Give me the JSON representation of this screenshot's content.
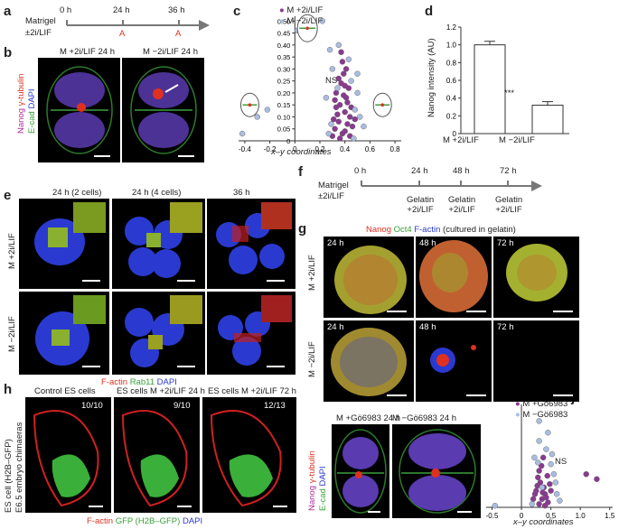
{
  "colors": {
    "red": "#e03020",
    "green": "#3aa03a",
    "blue": "#2a3ad0",
    "magenta": "#b0309a",
    "purple_dot": "#8a3a90",
    "light_dot": "#a9bde0",
    "arrow": "#888888"
  },
  "panel_letters": [
    "a",
    "b",
    "c",
    "d",
    "e",
    "f",
    "g",
    "h",
    "i",
    "j"
  ],
  "panel_a": {
    "matrigel": "Matrigel",
    "condition": "±2i/LIF",
    "ticks": [
      "0 h",
      "24 h",
      "36 h"
    ],
    "marks": [
      "A",
      "A"
    ]
  },
  "panel_b": {
    "titles": [
      "M +2i/LIF 24 h",
      "M −2i/LIF 24 h"
    ],
    "stain_labels": [
      "Nanog",
      "γ-tubulin",
      "E-cad",
      "DAPI"
    ]
  },
  "panel_e": {
    "col_titles": [
      "24 h (2 cells)",
      "24 h (4 cells)",
      "36 h"
    ],
    "row_labels": [
      "M +2i/LIF",
      "M −2i/LIF"
    ],
    "legend": [
      "F-actin",
      "Rab11",
      "DAPI"
    ]
  },
  "panel_f": {
    "matrigel": "Matrigel",
    "condition": "±2i/LIF",
    "ticks": [
      "0 h",
      "24 h",
      "48 h",
      "72 h"
    ],
    "steps": [
      [
        "Gelatin",
        "+2i/LIF"
      ],
      [
        "Gelatin",
        "+2i/LIF"
      ],
      [
        "Gelatin",
        "+2i/LIF"
      ]
    ]
  },
  "panel_g": {
    "header": [
      "Nanog",
      "Oct4",
      "F-actin",
      "(cultured in gelatin)"
    ],
    "row_labels": [
      "M +2i/LIF",
      "M −2i/LIF"
    ],
    "times": [
      "24 h",
      "48 h",
      "72 h"
    ]
  },
  "panel_h": {
    "titles": [
      "Control ES cells",
      "ES cells M +2i/LIF 24 h",
      "ES cells M +2i/LIF 72 h"
    ],
    "counts": [
      "10/10",
      "9/10",
      "12/13"
    ],
    "side_label": [
      "ES cell (H2B–GFP)",
      "E6.5 embryo chimaeras"
    ],
    "legend": [
      "F-actin",
      "GFP (H2B–GFP)",
      "DAPI"
    ]
  },
  "panel_i": {
    "titles": [
      "M +Gö6983 24 h",
      "M −Gö6983 24 h"
    ],
    "stain_labels": [
      "Nanog",
      "γ-tubulin",
      "E-cad",
      "DAPI"
    ]
  },
  "chart_data": [
    {
      "type": "scatter",
      "panel": "c",
      "xlabel": "x–y coordinates",
      "ticks_x": [
        "-0.4",
        "-0.2",
        "0",
        "0.2",
        "0.4",
        "0.6",
        "0.8"
      ],
      "ticks_y": [
        "0",
        "0.05",
        "0.10",
        "0.15",
        "0.20",
        "0.25",
        "0.30",
        "0.35",
        "0.40",
        "0.45",
        "0.50"
      ],
      "xlim": [
        -0.45,
        0.85
      ],
      "ylim": [
        0,
        0.52
      ],
      "annotation": "NS",
      "series": [
        {
          "name": "M +2i/LIF",
          "color": "#8a3a90",
          "points": [
            [
              0.3,
              0.02
            ],
            [
              0.32,
              0.05
            ],
            [
              0.35,
              0.08
            ],
            [
              0.38,
              0.03
            ],
            [
              0.4,
              0.12
            ],
            [
              0.42,
              0.07
            ],
            [
              0.36,
              0.15
            ],
            [
              0.44,
              0.1
            ],
            [
              0.33,
              0.2
            ],
            [
              0.41,
              0.18
            ],
            [
              0.37,
              0.24
            ],
            [
              0.45,
              0.14
            ],
            [
              0.39,
              0.28
            ],
            [
              0.34,
              0.11
            ],
            [
              0.43,
              0.22
            ],
            [
              0.38,
              0.33
            ],
            [
              0.4,
              0.04
            ],
            [
              0.31,
              0.09
            ],
            [
              0.46,
              0.06
            ],
            [
              0.36,
              0.01
            ],
            [
              0.42,
              0.16
            ],
            [
              0.35,
              0.26
            ],
            [
              0.39,
              0.19
            ],
            [
              0.44,
              0.02
            ],
            [
              0.37,
              0.37
            ],
            [
              0.41,
              0.3
            ],
            [
              0.33,
              0.14
            ],
            [
              0.48,
              0.09
            ],
            [
              0.32,
              0.17
            ],
            [
              0.4,
              0.23
            ]
          ]
        },
        {
          "name": "M −2i/LIF",
          "color": "#a9bde0",
          "points": [
            [
              -0.42,
              0.03
            ],
            [
              -0.3,
              0.1
            ],
            [
              -0.22,
              0.13
            ],
            [
              0.22,
              0.5
            ],
            [
              0.02,
              0.46
            ],
            [
              0.28,
              0.38
            ],
            [
              0.5,
              0.2
            ],
            [
              0.55,
              0.06
            ],
            [
              0.48,
              0.13
            ],
            [
              0.27,
              0.03
            ],
            [
              0.45,
              0.25
            ],
            [
              0.3,
              0.3
            ],
            [
              0.52,
              0.1
            ],
            [
              0.35,
              0.4
            ],
            [
              0.25,
              0.18
            ],
            [
              0.47,
              0.01
            ],
            [
              0.43,
              0.34
            ],
            [
              0.29,
              0.07
            ],
            [
              0.5,
              0.28
            ],
            [
              0.34,
              0.22
            ]
          ]
        }
      ]
    },
    {
      "type": "bar",
      "panel": "d",
      "categories": [
        "M +2i/LIF",
        "M −2i/LIF"
      ],
      "values": [
        1.0,
        0.32
      ],
      "errors": [
        0.04,
        0.04
      ],
      "ylabel": "Nanog intensity (AU)",
      "ticks_y": [
        "0",
        "0.2",
        "0.4",
        "0.6",
        "0.8",
        "1.0",
        "1.2"
      ],
      "ylim": [
        0,
        1.2
      ],
      "annotation": "***"
    },
    {
      "type": "scatter",
      "panel": "j",
      "xlabel": "x–y coordinates",
      "ticks_x": [
        "-0.5",
        "0",
        "0.5",
        "1.0",
        "1.5"
      ],
      "xlim": [
        -0.6,
        1.55
      ],
      "ylim": [
        0,
        0.62
      ],
      "annotation": "NS",
      "series": [
        {
          "name": "M +Gö6983",
          "color": "#8a3a90",
          "points": [
            [
              0.3,
              0.02
            ],
            [
              0.35,
              0.05
            ],
            [
              0.4,
              0.08
            ],
            [
              0.25,
              0.1
            ],
            [
              0.45,
              0.03
            ],
            [
              0.38,
              0.12
            ],
            [
              0.32,
              0.15
            ],
            [
              0.42,
              0.06
            ],
            [
              0.28,
              0.18
            ],
            [
              0.36,
              0.09
            ],
            [
              0.48,
              0.14
            ],
            [
              0.3,
              0.22
            ],
            [
              0.44,
              0.19
            ],
            [
              0.2,
              0.05
            ],
            [
              0.5,
              0.1
            ],
            [
              0.34,
              0.25
            ],
            [
              0.4,
              0.01
            ],
            [
              0.27,
              0.13
            ],
            [
              1.1,
              0.2
            ],
            [
              1.28,
              0.17
            ],
            [
              0.37,
              0.3
            ],
            [
              0.23,
              0.08
            ]
          ]
        },
        {
          "name": "M −Gö6983",
          "color": "#a9bde0",
          "points": [
            [
              -0.45,
              0.01
            ],
            [
              0.3,
              0.52
            ],
            [
              0.45,
              0.45
            ],
            [
              0.5,
              0.26
            ],
            [
              0.6,
              0.08
            ],
            [
              0.55,
              0.2
            ],
            [
              0.22,
              0.3
            ],
            [
              0.65,
              0.04
            ],
            [
              0.42,
              0.35
            ],
            [
              0.3,
              0.4
            ],
            [
              0.58,
              0.15
            ],
            [
              0.35,
              0.12
            ],
            [
              0.18,
              0.02
            ],
            [
              0.52,
              0.32
            ],
            [
              0.28,
              0.27
            ]
          ]
        }
      ]
    }
  ]
}
